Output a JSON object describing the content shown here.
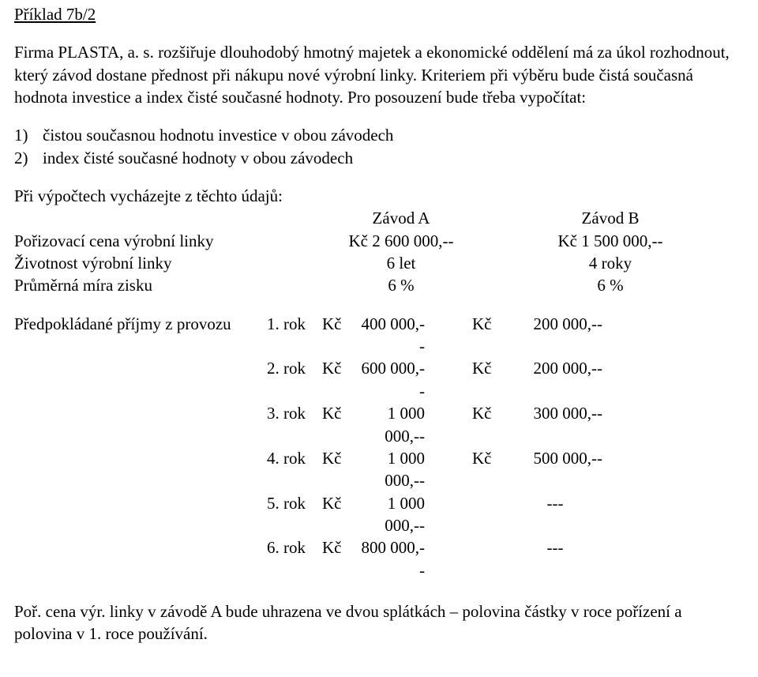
{
  "header": {
    "example_label": "Příklad 7b/2"
  },
  "intro": {
    "p1": "Firma PLASTA, a. s. rozšiřuje dlouhodobý hmotný majetek a  ekonomické oddělení má za úkol rozhodnout, který závod dostane přednost při nákupu nové výrobní linky. Kriteriem při výběru bude čistá současná hodnota investice a index čisté současné hodnoty. Pro posouzení bude třeba vypočítat:"
  },
  "tasks": {
    "n1": "1)",
    "t1": "čistou současnou hodnotu investice v obou závodech",
    "n2": "2)",
    "t2": "index čisté současné hodnoty v obou závodech"
  },
  "params": {
    "intro": "Při výpočtech vycházejte z těchto údajů:",
    "colA": "Závod A",
    "colB": "Závod B",
    "r1_label": "Pořizovací cena výrobní linky",
    "r1_a": "Kč 2 600 000,--",
    "r1_b": "Kč 1 500 000,--",
    "r2_label": "Životnost výrobní linky",
    "r2_a": "6 let",
    "r2_b": "4 roky",
    "r3_label": "Průměrná míra zisku",
    "r3_a": "6 %",
    "r3_b": "6 %"
  },
  "income": {
    "label": "Předpokládané příjmy z provozu",
    "kc": "Kč",
    "rows": [
      {
        "rok": "1. rok",
        "a": "400 000,--",
        "b": "200 000,--"
      },
      {
        "rok": "2. rok",
        "a": "600 000,--",
        "b": "200 000,--"
      },
      {
        "rok": "3. rok",
        "a": "1 000 000,--",
        "b": "300 000,--"
      },
      {
        "rok": "4. rok",
        "a": "1 000 000,--",
        "b": "500 000,--"
      },
      {
        "rok": "5. rok",
        "a": "1 000 000,--",
        "b": "---"
      },
      {
        "rok": "6. rok",
        "a": "800 000,--",
        "b": "---"
      }
    ]
  },
  "footer": {
    "text": "Poř. cena výr. linky v závodě A bude uhrazena ve dvou splátkách – polovina částky v roce pořízení a polovina v 1. roce používání."
  }
}
